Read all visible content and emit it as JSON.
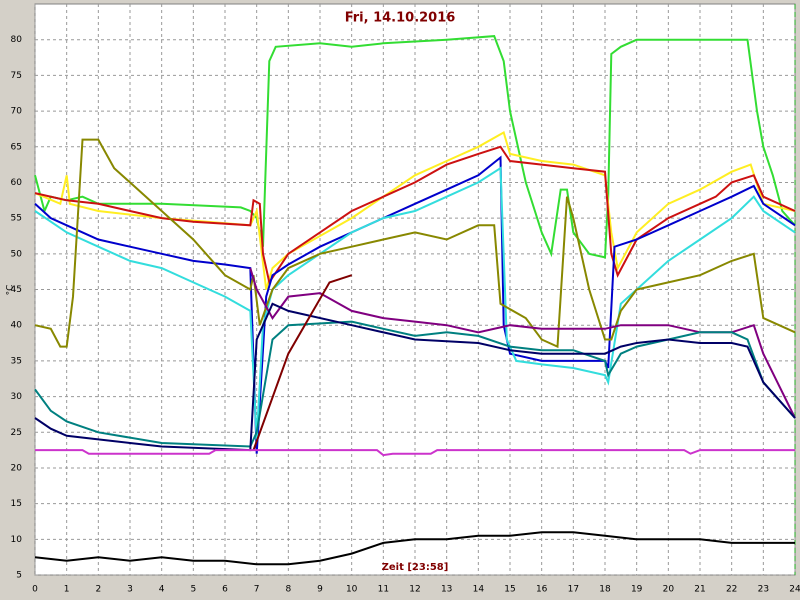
{
  "chart_data": {
    "type": "line",
    "title": "Fri, 14.10.2016",
    "y_label": "°C",
    "x_label": "Zeit [23:58]",
    "xlim": [
      0,
      24
    ],
    "ylim": [
      5,
      85
    ],
    "xticks": [
      0,
      1,
      2,
      3,
      4,
      5,
      6,
      7,
      8,
      9,
      10,
      11,
      12,
      13,
      14,
      15,
      16,
      17,
      18,
      19,
      20,
      21,
      22,
      23,
      24
    ],
    "yticks": [
      5,
      10,
      15,
      20,
      25,
      30,
      35,
      40,
      45,
      50,
      55,
      60,
      65,
      70,
      75,
      80
    ],
    "grid": true,
    "series": [
      {
        "color": "#33dd33",
        "x": [
          0,
          0.3,
          0.5,
          1,
          1.5,
          2,
          4,
          6.5,
          6.8,
          7,
          7.1,
          7.2,
          7.4,
          7.6,
          9,
          10,
          11,
          13,
          14.5,
          14.8,
          15,
          15.5,
          16,
          16.3,
          16.6,
          16.8,
          17,
          17.5,
          18,
          18.1,
          18.2,
          18.5,
          19,
          22,
          22.5,
          22.8,
          23,
          23.3,
          23.6,
          24
        ],
        "values": [
          61,
          56,
          58,
          57.5,
          58,
          57,
          57,
          56.5,
          56,
          55,
          53,
          51,
          77,
          79,
          79.5,
          79,
          79.5,
          80,
          80.5,
          77,
          70,
          60,
          53,
          50,
          59,
          59,
          53,
          50,
          49.5,
          58,
          78,
          79,
          80,
          80,
          80,
          70,
          65,
          61,
          56,
          54
        ]
      },
      {
        "color": "#ffee22",
        "x": [
          0,
          0.8,
          1,
          1.1,
          2,
          4,
          6.8,
          7,
          7.3,
          7.5,
          8,
          10,
          11,
          12,
          13,
          14,
          14.8,
          15,
          16,
          17,
          18,
          18.2,
          18.4,
          19,
          20,
          21,
          22,
          22.6,
          23,
          24
        ],
        "values": [
          58.5,
          57,
          61,
          57,
          56,
          55,
          54,
          56,
          45,
          48,
          50,
          55,
          58,
          61,
          63,
          65,
          67,
          64,
          63,
          62.5,
          61,
          53,
          48,
          53,
          57,
          59,
          61.5,
          62.5,
          57,
          56
        ]
      },
      {
        "color": "#cc1111",
        "x": [
          0,
          1,
          2,
          3,
          4,
          5,
          6.8,
          6.9,
          7.1,
          7.2,
          7.4,
          8,
          9,
          10,
          11,
          12,
          13,
          14,
          14.7,
          15,
          16,
          17,
          18,
          18.2,
          18.4,
          19,
          20,
          21,
          21.5,
          22,
          22.7,
          23,
          24
        ],
        "values": [
          58.5,
          57.5,
          57,
          56,
          55,
          54.5,
          54,
          57.5,
          57,
          50,
          46,
          50,
          53,
          56,
          58,
          60,
          62.5,
          64,
          65,
          63,
          62.5,
          62,
          61.5,
          50,
          47,
          52,
          55,
          57,
          58,
          60,
          61,
          58,
          56
        ]
      },
      {
        "color": "#0000cc",
        "x": [
          0,
          0.5,
          1,
          2,
          3,
          4,
          5,
          6,
          6.8,
          6.9,
          7,
          7.3,
          7.5,
          8,
          9,
          10,
          11,
          12,
          13,
          14,
          14.7,
          14.8,
          15,
          16,
          17,
          18,
          18.1,
          18.3,
          19,
          20,
          21,
          22,
          22.7,
          23,
          24
        ],
        "values": [
          57,
          55,
          54,
          52,
          51,
          50,
          49,
          48.5,
          48,
          35,
          22,
          44,
          47,
          48.5,
          51,
          53,
          55,
          57,
          59,
          61,
          63.5,
          40,
          36,
          35,
          35,
          35,
          34,
          51,
          52,
          54,
          56,
          58,
          59.5,
          57,
          54
        ]
      },
      {
        "color": "#33dddd",
        "x": [
          0,
          1,
          2,
          3,
          4,
          5,
          6,
          6.8,
          7,
          7.2,
          7.5,
          8,
          9,
          10,
          11,
          12,
          13,
          14,
          14.7,
          14.9,
          15.2,
          16,
          17,
          18,
          18.1,
          18.5,
          19,
          20,
          21,
          22,
          22.7,
          23,
          24
        ],
        "values": [
          56,
          53,
          51,
          49,
          48,
          46,
          44,
          42,
          24,
          40,
          45,
          47,
          50,
          53,
          55,
          56,
          58,
          60,
          62,
          38,
          35,
          34.5,
          34,
          33,
          32,
          43,
          45,
          49,
          52,
          55,
          58,
          56,
          53
        ]
      },
      {
        "color": "#888800",
        "x": [
          0,
          0.5,
          0.8,
          1,
          1.2,
          1.5,
          2,
          2.5,
          3,
          4,
          5,
          6,
          6.8,
          6.9,
          7.1,
          7.5,
          8,
          9,
          10,
          11,
          12,
          13,
          14,
          14.5,
          14.7,
          15.5,
          16,
          16.5,
          16.8,
          17,
          17.5,
          18,
          18.2,
          18.5,
          19,
          20,
          21,
          22,
          22.7,
          23,
          23.5,
          24
        ],
        "values": [
          40,
          39.5,
          37,
          37,
          44,
          66,
          66,
          62,
          60,
          56,
          52,
          47,
          45,
          47,
          40,
          45,
          48,
          50,
          51,
          52,
          53,
          52,
          54,
          54,
          43,
          41,
          38,
          37,
          58,
          55,
          45,
          38,
          38,
          42,
          45,
          46,
          47,
          49,
          50,
          41,
          40,
          39
        ]
      },
      {
        "color": "#800080",
        "x": [
          6.8,
          7,
          7.5,
          8,
          9,
          10,
          11,
          12,
          13,
          14,
          15,
          16,
          17,
          18,
          18.5,
          19,
          20,
          21,
          22,
          22.7,
          23,
          24
        ],
        "values": [
          48,
          45,
          41,
          44,
          44.5,
          42,
          41,
          40.5,
          40,
          39,
          40,
          39.5,
          39.5,
          39.5,
          40,
          40,
          40,
          39,
          39,
          40,
          36,
          27
        ]
      },
      {
        "color": "#008080",
        "x": [
          0,
          0.5,
          1,
          2,
          4,
          6.8,
          7,
          7.5,
          8,
          10,
          11,
          12,
          13,
          14,
          15,
          16,
          17,
          18,
          18.1,
          18.5,
          19,
          20,
          21,
          22,
          22.5,
          23,
          24
        ],
        "values": [
          31,
          28,
          26.5,
          25,
          23.5,
          23,
          25,
          38,
          40,
          40.5,
          39.5,
          38.5,
          39,
          38.5,
          37,
          36.5,
          36.5,
          35,
          33,
          36,
          37,
          38,
          39,
          39,
          38,
          32,
          27
        ]
      },
      {
        "color": "#000066",
        "x": [
          0,
          0.5,
          1,
          2,
          3,
          4,
          6.8,
          7,
          7.5,
          8,
          10,
          12,
          14,
          15,
          16,
          17,
          18,
          18.5,
          19,
          20,
          21,
          22,
          22.5,
          23,
          24
        ],
        "values": [
          27,
          25.5,
          24.5,
          24,
          23.5,
          23,
          22.5,
          38,
          43,
          42,
          40,
          38,
          37.5,
          36.5,
          36,
          36,
          36,
          37,
          37.5,
          38,
          37.5,
          37.5,
          37,
          32,
          27
        ]
      },
      {
        "color": "#800000",
        "x": [
          6.9,
          8,
          9.3,
          10
        ],
        "values": [
          22.5,
          36,
          46,
          47
        ]
      },
      {
        "color": "#cc33cc",
        "x": [
          0,
          1.5,
          1.7,
          5.5,
          5.7,
          10.8,
          11,
          11.3,
          12.5,
          12.7,
          20.5,
          20.7,
          21,
          24
        ],
        "values": [
          22.5,
          22.5,
          22,
          22,
          22.5,
          22.5,
          21.8,
          22,
          22,
          22.5,
          22.5,
          22,
          22.5,
          22.5
        ]
      },
      {
        "color": "#000000",
        "x": [
          0,
          1,
          2,
          3,
          4,
          5,
          6,
          7,
          8,
          9,
          10,
          11,
          12,
          13,
          14,
          15,
          16,
          17,
          18,
          19,
          20,
          21,
          22,
          23,
          24
        ],
        "values": [
          7.5,
          7,
          7.5,
          7,
          7.5,
          7,
          7,
          6.5,
          6.5,
          7,
          8,
          9.5,
          10,
          10,
          10.5,
          10.5,
          11,
          11,
          10.5,
          10,
          10,
          10,
          9.5,
          9.5,
          9.5
        ]
      }
    ]
  }
}
